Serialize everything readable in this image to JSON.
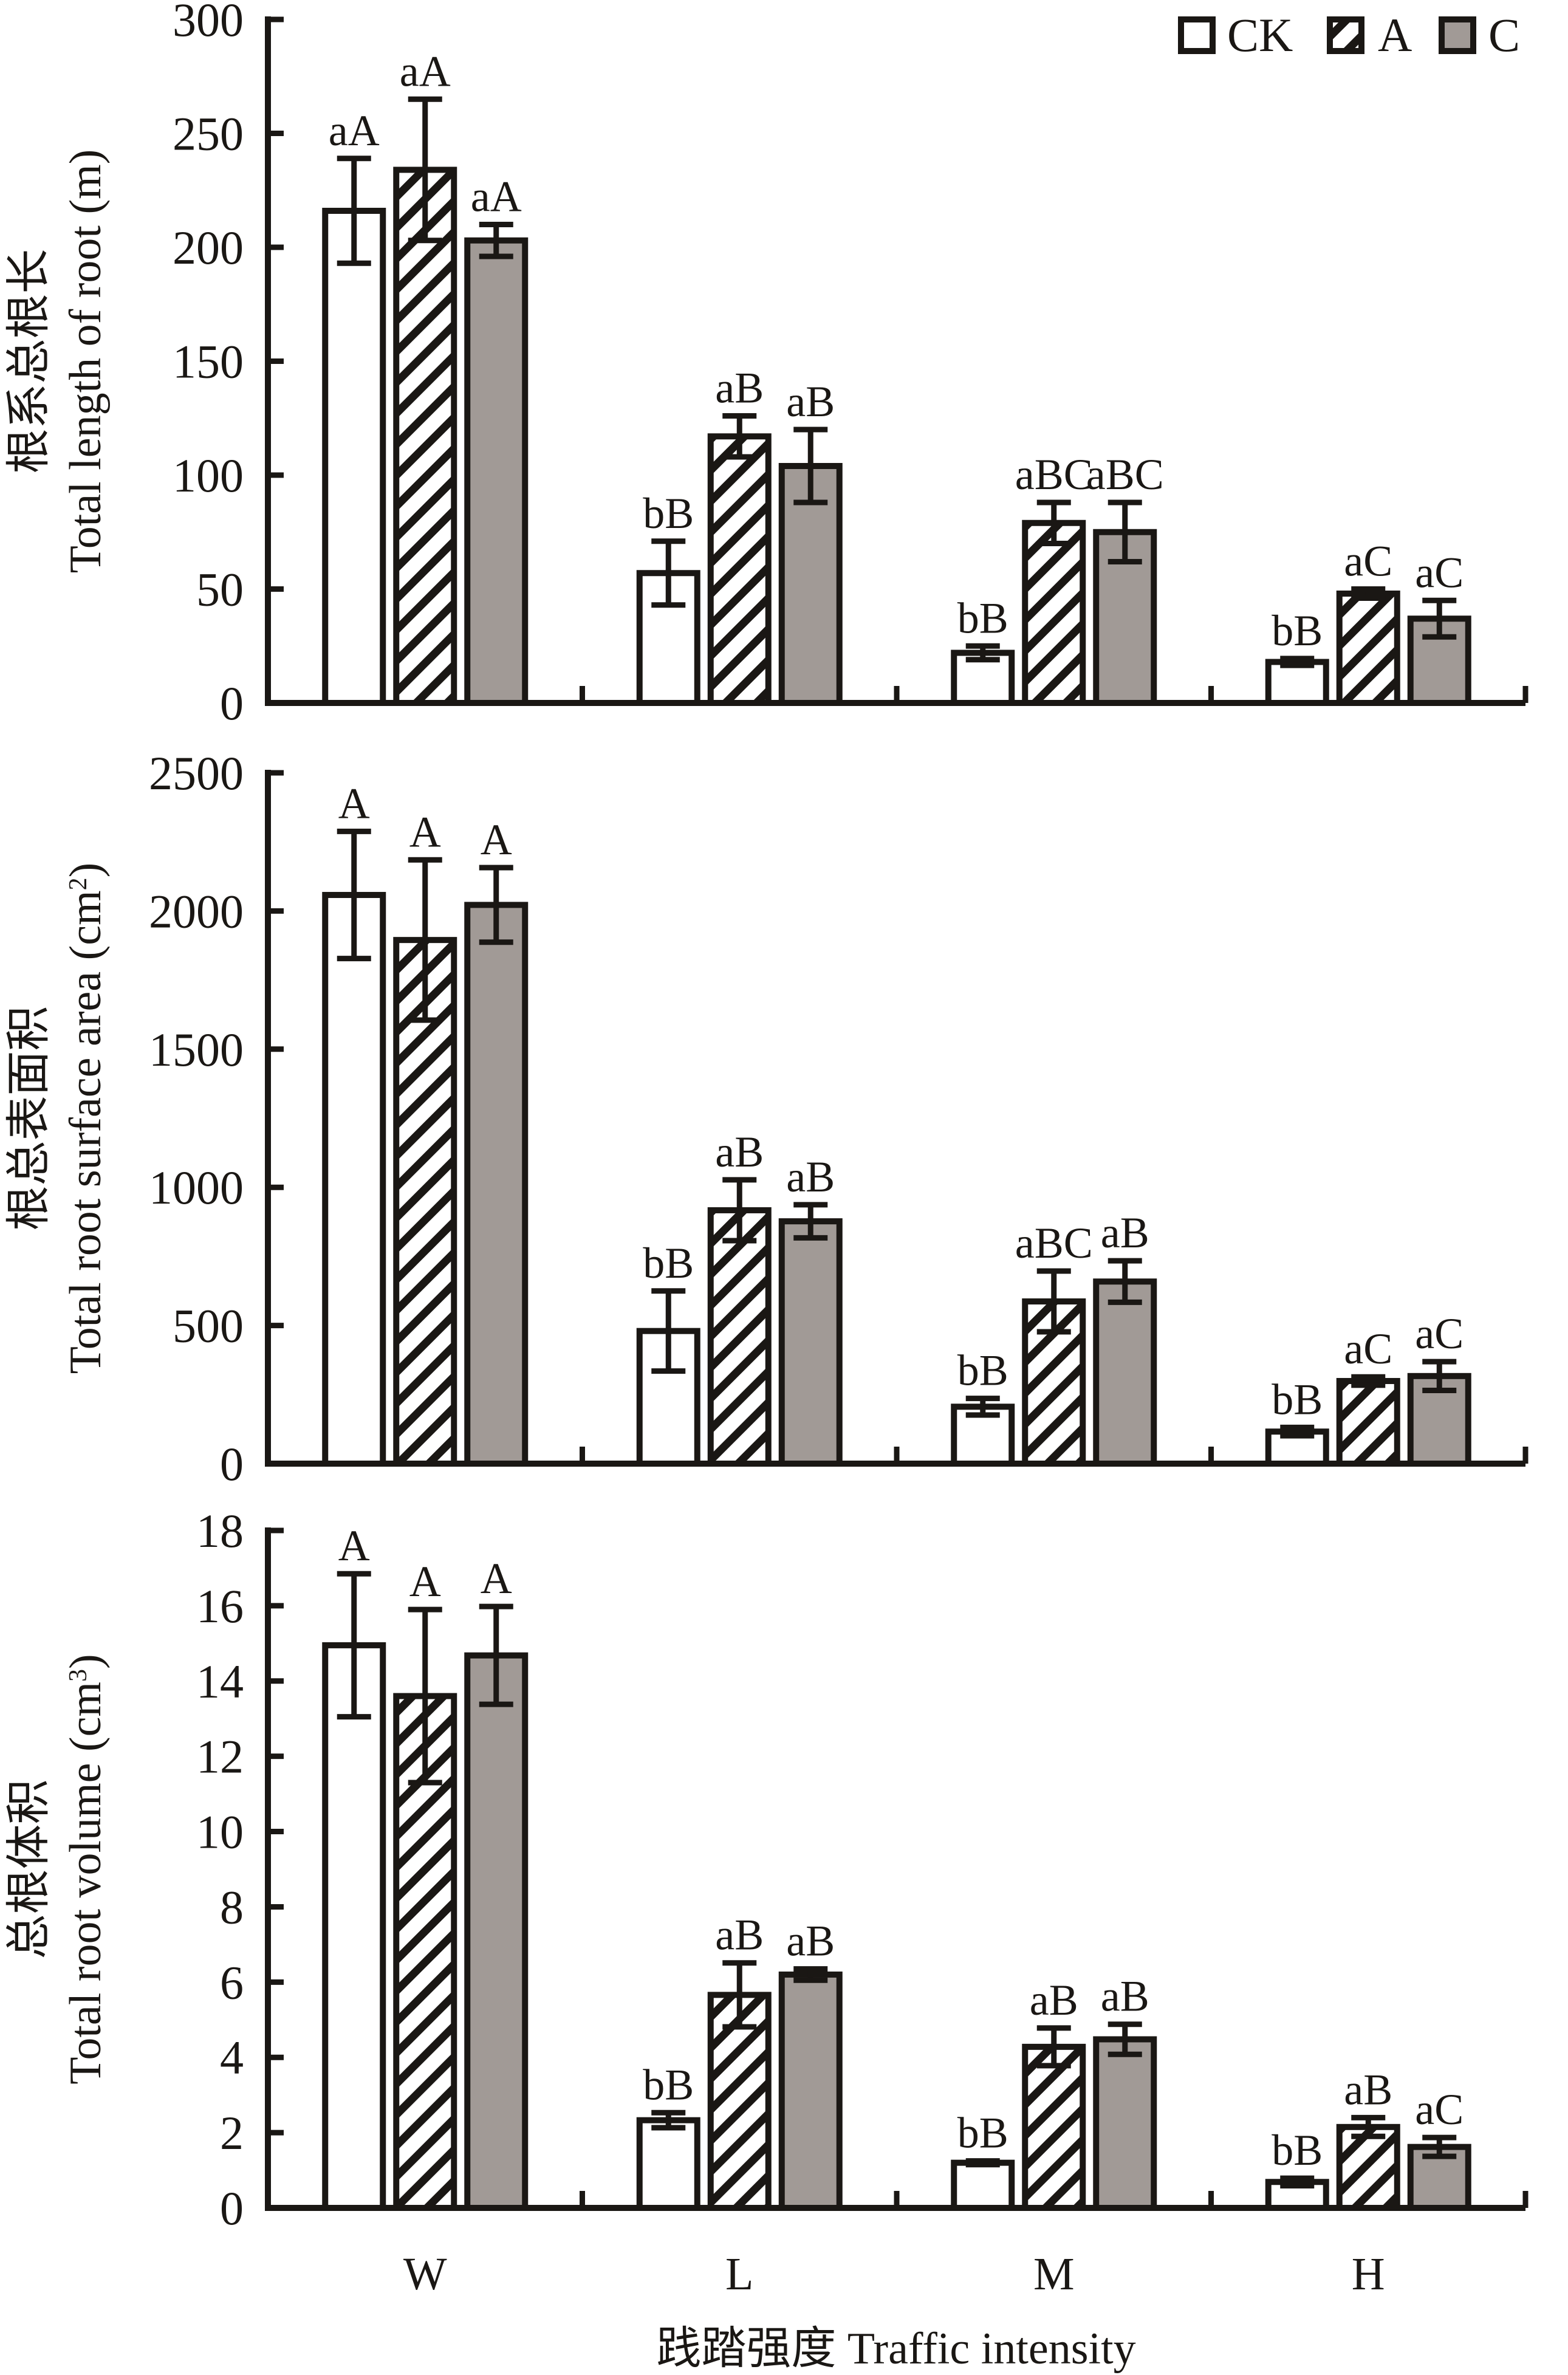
{
  "chart_data": {
    "type": "bar",
    "categories": [
      "W",
      "L",
      "M",
      "H"
    ],
    "xlabel": "践踏强度 Traffic intensity",
    "legend": {
      "position": "top-right",
      "entries": [
        {
          "name": "CK",
          "pattern": "white"
        },
        {
          "name": "A",
          "pattern": "hatched"
        },
        {
          "name": "C",
          "pattern": "gray"
        }
      ]
    },
    "colors": {
      "stroke": "#1a1714",
      "ck_fill": "#ffffff",
      "a_fill": "#ffffff",
      "a_hatch": "#1a1714",
      "c_fill": "#a19a96"
    },
    "panels": [
      {
        "id": "length",
        "ylabel_cn": "根系总根长",
        "ylabel_en": "Total length of root (m)",
        "ylim": [
          0,
          300
        ],
        "yticks": [
          0,
          50,
          100,
          150,
          200,
          250,
          300
        ],
        "series": [
          {
            "name": "CK",
            "values": [
              216,
              57,
              22,
              18
            ],
            "errors": [
              23,
              14,
              3,
              1.5
            ],
            "labels": [
              "aA",
              "bB",
              "bB",
              "bB"
            ]
          },
          {
            "name": "A",
            "values": [
              234,
              117,
              79,
              48
            ],
            "errors": [
              31,
              9,
              9,
              2
            ],
            "labels": [
              "aA",
              "aB",
              "aBC",
              "aC"
            ]
          },
          {
            "name": "C",
            "values": [
              203,
              104,
              75,
              37
            ],
            "errors": [
              7,
              16,
              13,
              8
            ],
            "labels": [
              "aA",
              "aB",
              "aBC",
              "aC"
            ]
          }
        ]
      },
      {
        "id": "surface",
        "ylabel_cn": "根总表面积",
        "ylabel_en": "Total root surface area (cm",
        "ylabel_sup": "2",
        "ylabel_end": ")",
        "ylim": [
          0,
          2500
        ],
        "yticks": [
          0,
          500,
          1000,
          1500,
          2000,
          2500
        ],
        "series": [
          {
            "name": "CK",
            "values": [
              2058,
              480,
              206,
              116
            ],
            "errors": [
              230,
              145,
              30,
              15
            ],
            "labels": [
              "A",
              "bB",
              "bB",
              "bB"
            ]
          },
          {
            "name": "A",
            "values": [
              1895,
              917,
              587,
              299
            ],
            "errors": [
              290,
              110,
              110,
              15
            ],
            "labels": [
              "A",
              "aB",
              "aBC",
              "aC"
            ]
          },
          {
            "name": "C",
            "values": [
              2022,
              877,
              659,
              317
            ],
            "errors": [
              135,
              60,
              75,
              52
            ],
            "labels": [
              "A",
              "aB",
              "aB",
              "aC"
            ]
          }
        ]
      },
      {
        "id": "volume",
        "ylabel_cn": "总根体积",
        "ylabel_en": "Total root volume (cm",
        "ylabel_sup": "3",
        "ylabel_end": ")",
        "ylim": [
          0,
          18
        ],
        "yticks": [
          0,
          2,
          4,
          6,
          8,
          10,
          12,
          14,
          16,
          18
        ],
        "series": [
          {
            "name": "CK",
            "values": [
              14.95,
              2.33,
              1.2,
              0.69
            ],
            "errors": [
              1.9,
              0.2,
              0.05,
              0.1
            ],
            "labels": [
              "A",
              "bB",
              "bB",
              "bB"
            ]
          },
          {
            "name": "A",
            "values": [
              13.6,
              5.66,
              4.28,
              2.15
            ],
            "errors": [
              2.3,
              0.85,
              0.5,
              0.25
            ],
            "labels": [
              "A",
              "aB",
              "aB",
              "aB"
            ]
          },
          {
            "name": "C",
            "values": [
              14.68,
              6.2,
              4.48,
              1.62
            ],
            "errors": [
              1.3,
              0.15,
              0.4,
              0.25
            ],
            "labels": [
              "A",
              "aB",
              "aB",
              "aC"
            ]
          }
        ]
      }
    ]
  }
}
